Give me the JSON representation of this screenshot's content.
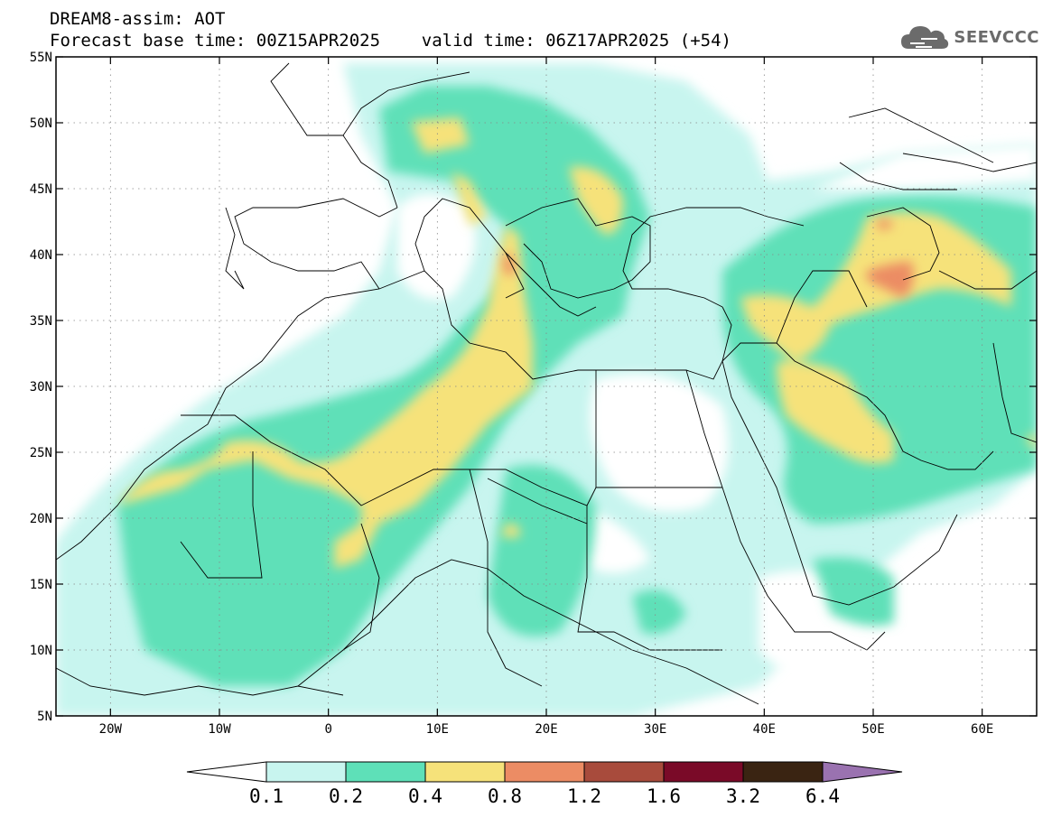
{
  "header": {
    "line1": "DREAM8-assim: AOT",
    "line2": "Forecast base time: 00Z15APR2025    valid time: 06Z17APR2025 (+54)",
    "logo_text": "SEEVCCC",
    "logo_icon": "cloud-icon"
  },
  "map": {
    "lon_range": [
      -25,
      65
    ],
    "lat_range": [
      5,
      55
    ],
    "lon_ticks": [
      {
        "lon": -20,
        "label": "20W"
      },
      {
        "lon": -10,
        "label": "10W"
      },
      {
        "lon": 0,
        "label": "0"
      },
      {
        "lon": 10,
        "label": "10E"
      },
      {
        "lon": 20,
        "label": "20E"
      },
      {
        "lon": 30,
        "label": "30E"
      },
      {
        "lon": 40,
        "label": "40E"
      },
      {
        "lon": 50,
        "label": "50E"
      },
      {
        "lon": 60,
        "label": "60E"
      }
    ],
    "lat_ticks": [
      {
        "lat": 55,
        "label": "55N"
      },
      {
        "lat": 50,
        "label": "50N"
      },
      {
        "lat": 45,
        "label": "45N"
      },
      {
        "lat": 40,
        "label": "40N"
      },
      {
        "lat": 35,
        "label": "35N"
      },
      {
        "lat": 30,
        "label": "30N"
      },
      {
        "lat": 25,
        "label": "25N"
      },
      {
        "lat": 20,
        "label": "20N"
      },
      {
        "lat": 15,
        "label": "15N"
      },
      {
        "lat": 10,
        "label": "10N"
      },
      {
        "lat": 5,
        "label": "5N"
      }
    ],
    "grid": true
  },
  "colorbar": {
    "levels": [
      "0.1",
      "0.2",
      "0.4",
      "0.8",
      "1.2",
      "1.6",
      "3.2",
      "6.4"
    ],
    "under_color": "#ffffff",
    "colors": [
      "#c8f5ef",
      "#5ee0b8",
      "#f6e27a",
      "#ec8c64",
      "#a84b3c",
      "#7a0a28",
      "#3a2412"
    ],
    "over_color": "#9a72b0"
  }
}
